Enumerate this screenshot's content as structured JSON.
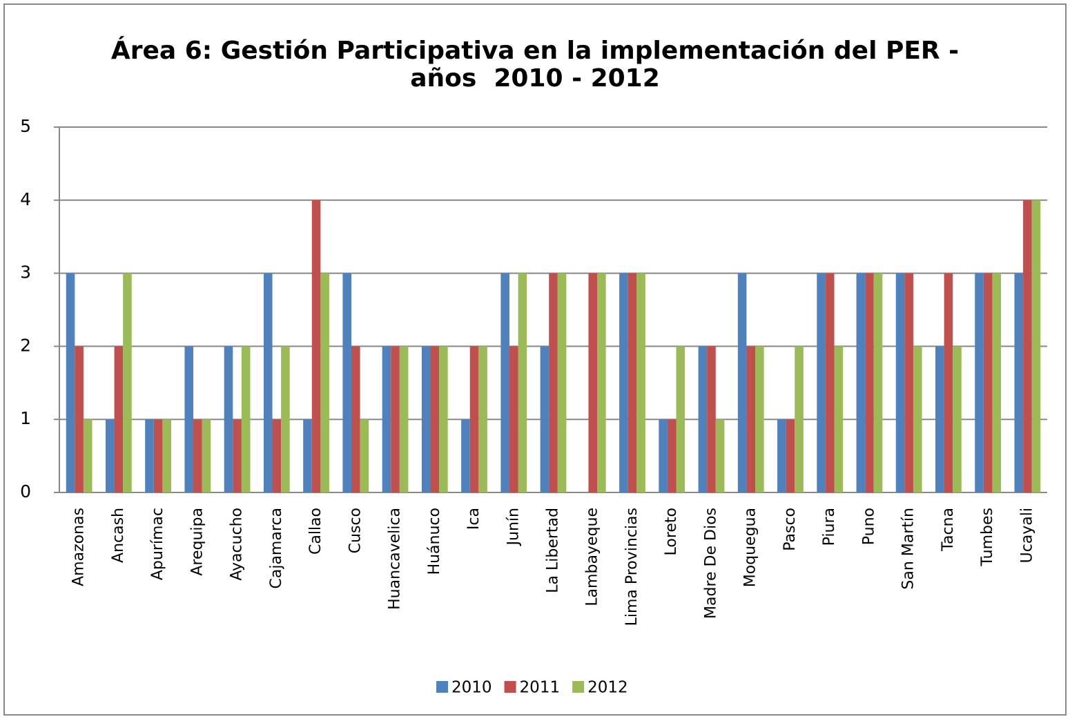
{
  "chart_data": {
    "type": "bar",
    "title": [
      "Área 6: Gestión Participativa en la implementación del PER -",
      "años  2010 - 2012"
    ],
    "categories": [
      "Amazonas",
      "Ancash",
      "Apurímac",
      "Arequipa",
      "Ayacucho",
      "Cajamarca",
      "Callao",
      "Cusco",
      "Huancavelica",
      "Huánuco",
      "Ica",
      "Junín",
      "La Libertad",
      "Lambayeque",
      "Lima Provincias",
      "Loreto",
      "Madre De Dios",
      "Moquegua",
      "Pasco",
      "Piura",
      "Puno",
      "San Martín",
      "Tacna",
      "Tumbes",
      "Ucayali"
    ],
    "series": [
      {
        "name": "2010",
        "color": "#4f81bd",
        "values": [
          3,
          1,
          1,
          2,
          2,
          3,
          1,
          3,
          2,
          2,
          1,
          3,
          2,
          0,
          3,
          1,
          2,
          3,
          1,
          3,
          3,
          3,
          2,
          3,
          3
        ]
      },
      {
        "name": "2011",
        "color": "#c0504d",
        "values": [
          2,
          2,
          1,
          1,
          1,
          1,
          4,
          2,
          2,
          2,
          2,
          2,
          3,
          3,
          3,
          1,
          2,
          2,
          1,
          3,
          3,
          3,
          3,
          3,
          4
        ]
      },
      {
        "name": "2012",
        "color": "#9bbb59",
        "values": [
          1,
          3,
          1,
          1,
          2,
          2,
          3,
          1,
          2,
          2,
          2,
          3,
          3,
          3,
          3,
          2,
          1,
          2,
          2,
          2,
          3,
          2,
          2,
          3,
          4
        ]
      }
    ],
    "ylim": [
      0,
      5
    ],
    "yticks": [
      0,
      1,
      2,
      3,
      4,
      5
    ],
    "grid": true,
    "legend": "bottom"
  }
}
